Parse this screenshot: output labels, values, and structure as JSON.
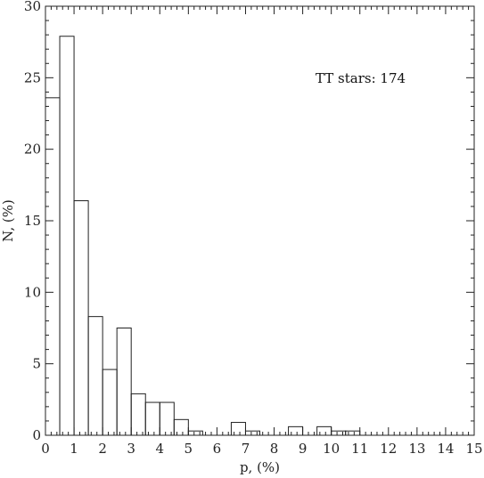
{
  "chart_data": {
    "type": "bar",
    "title": "",
    "xlabel": "p, (%)",
    "ylabel": "N, (%)",
    "xlim": [
      0,
      15
    ],
    "ylim": [
      0,
      30
    ],
    "x_ticks": [
      "0",
      "1",
      "2",
      "3",
      "4",
      "5",
      "6",
      "7",
      "8",
      "9",
      "10",
      "11",
      "12",
      "13",
      "14",
      "15"
    ],
    "y_ticks": [
      "0",
      "5",
      "10",
      "15",
      "20",
      "25",
      "30"
    ],
    "bin_width": 0.5,
    "bins": [
      0,
      0.5,
      1,
      1.5,
      2,
      2.5,
      3,
      3.5,
      4,
      4.5,
      5,
      5.5,
      6,
      6.5,
      7,
      7.5,
      8,
      8.5,
      9,
      9.5,
      10,
      10.5,
      11,
      11.5,
      12,
      12.5,
      13,
      13.5,
      14,
      14.5
    ],
    "values": [
      23.6,
      27.9,
      16.4,
      8.3,
      4.6,
      7.5,
      2.9,
      2.3,
      2.3,
      1.1,
      0.3,
      0,
      0,
      0.9,
      0.3,
      0,
      0,
      0.6,
      0,
      0.6,
      0.3,
      0.3,
      0,
      0,
      0,
      0,
      0,
      0,
      0,
      0
    ],
    "annotation": "TT stars: 174",
    "grid": false,
    "colors": {
      "line": "#222222",
      "background": "#ffffff"
    }
  }
}
